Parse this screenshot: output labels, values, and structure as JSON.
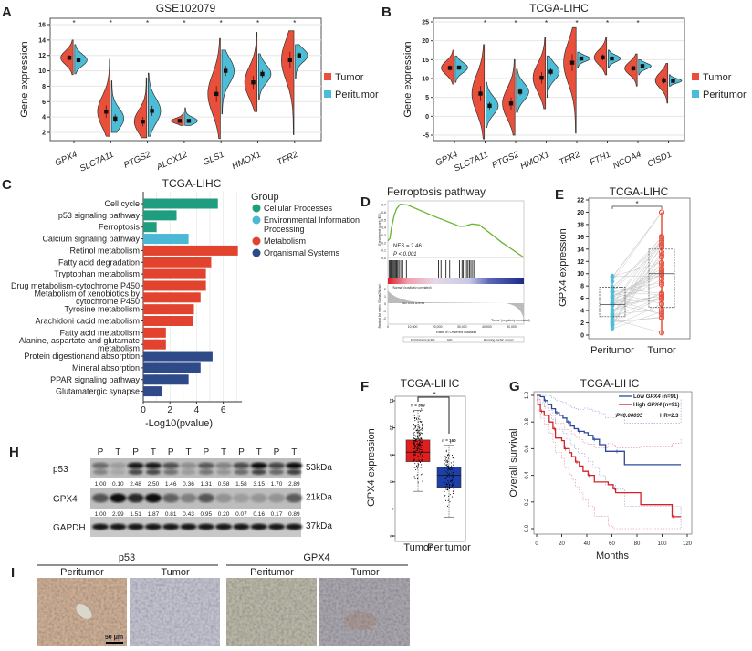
{
  "panel_letters": {
    "A": "A",
    "B": "B",
    "C": "C",
    "D": "D",
    "E": "E",
    "F": "F",
    "G": "G",
    "H": "H",
    "I": "I"
  },
  "colors": {
    "tumor": "#e8503c",
    "peritumor": "#4cbdd6",
    "cellular": "#1f9e7f",
    "environmental": "#4bb8d6",
    "metabolism": "#e2432f",
    "organismal": "#2f4a88",
    "highlight_label": "#d23a4a",
    "gsea_curve": "#6ab42d",
    "km_low": "#2d4a9a",
    "km_high": "#d2232a",
    "box_tumor": "#e11d1d",
    "box_peritumor": "#1d3fa8"
  },
  "chart_data": [
    {
      "type": "violin",
      "title": "GSE102079",
      "ylabel": "Gene expression",
      "ylim": [
        1,
        17
      ],
      "yticks": [
        "2",
        "4",
        "6",
        "8",
        "10",
        "12",
        "14",
        "16"
      ],
      "legend": [
        "Tumor",
        "Peritumor"
      ],
      "legend_placement": "right",
      "significance_mark": "*",
      "genes": [
        {
          "name": "GPX4",
          "sig": true,
          "tumor": {
            "mean": 11.7,
            "min": 9.5,
            "max": 14.0
          },
          "peritumor": {
            "mean": 11.4,
            "min": 9.6,
            "max": 13.4
          }
        },
        {
          "name": "SLC7A11",
          "sig": true,
          "tumor": {
            "mean": 4.7,
            "min": 1.5,
            "max": 11.5
          },
          "peritumor": {
            "mean": 3.8,
            "min": 2.0,
            "max": 8.7
          }
        },
        {
          "name": "PTGS2",
          "sig": true,
          "tumor": {
            "mean": 3.4,
            "min": 1.3,
            "max": 9.1
          },
          "peritumor": {
            "mean": 4.8,
            "min": 1.5,
            "max": 9.7
          }
        },
        {
          "name": "ALOX12",
          "sig": true,
          "tumor": {
            "mean": 3.5,
            "min": 2.9,
            "max": 4.6
          },
          "peritumor": {
            "mean": 3.5,
            "min": 2.9,
            "max": 5.2
          }
        },
        {
          "name": "GLS1",
          "sig": true,
          "tumor": {
            "mean": 7.0,
            "min": 1.2,
            "max": 14.2
          },
          "peritumor": {
            "mean": 10.0,
            "min": 4.4,
            "max": 12.7
          }
        },
        {
          "name": "HMOX1",
          "sig": true,
          "tumor": {
            "mean": 8.5,
            "min": 4.7,
            "max": 15.0
          },
          "peritumor": {
            "mean": 9.6,
            "min": 6.2,
            "max": 12.2
          }
        },
        {
          "name": "TFR2",
          "sig": true,
          "tumor": {
            "mean": 11.4,
            "min": 1.7,
            "max": 15.2
          },
          "peritumor": {
            "mean": 12.0,
            "min": 9.0,
            "max": 13.4
          }
        }
      ]
    },
    {
      "type": "violin",
      "title": "TCGA-LIHC",
      "ylabel": "Gene expression",
      "ylim": [
        -6,
        26
      ],
      "yticks": [
        "25",
        "20",
        "15",
        "10",
        "5",
        "0",
        "-5"
      ],
      "legend": [
        "Tumor",
        "Peritumor"
      ],
      "legend_placement": "right",
      "significance_mark": "*",
      "genes": [
        {
          "name": "GPX4",
          "sig": false,
          "tumor": {
            "mean": 12.8,
            "min": 8.5,
            "max": 17.5
          },
          "peritumor": {
            "mean": 12.9,
            "min": 9.0,
            "max": 16.0
          }
        },
        {
          "name": "SLC7A11",
          "sig": true,
          "tumor": {
            "mean": 6.0,
            "min": -6.0,
            "max": 19.0
          },
          "peritumor": {
            "mean": 2.8,
            "min": -3.0,
            "max": 9.0
          }
        },
        {
          "name": "PTGS2",
          "sig": true,
          "tumor": {
            "mean": 3.4,
            "min": -5.0,
            "max": 15.0
          },
          "peritumor": {
            "mean": 6.5,
            "min": 1.0,
            "max": 12.5
          }
        },
        {
          "name": "HMOX1",
          "sig": true,
          "tumor": {
            "mean": 10.2,
            "min": 2.0,
            "max": 21.0
          },
          "peritumor": {
            "mean": 11.8,
            "min": 5.0,
            "max": 16.0
          }
        },
        {
          "name": "TFR2",
          "sig": true,
          "tumor": {
            "mean": 14.2,
            "min": -4.5,
            "max": 23.5
          },
          "peritumor": {
            "mean": 15.3,
            "min": 13.0,
            "max": 17.0
          }
        },
        {
          "name": "FTH1",
          "sig": true,
          "tumor": {
            "mean": 15.6,
            "min": 11.0,
            "max": 21.0
          },
          "peritumor": {
            "mean": 15.3,
            "min": 13.0,
            "max": 17.5
          }
        },
        {
          "name": "NCOA4",
          "sig": true,
          "tumor": {
            "mean": 12.7,
            "min": 8.0,
            "max": 16.5
          },
          "peritumor": {
            "mean": 13.3,
            "min": 11.0,
            "max": 15.0
          }
        },
        {
          "name": "CISD1",
          "sig": false,
          "tumor": {
            "mean": 9.5,
            "min": 3.5,
            "max": 14.0
          },
          "peritumor": {
            "mean": 9.4,
            "min": 8.0,
            "max": 11.0
          }
        }
      ]
    },
    {
      "type": "bar",
      "orientation": "horizontal",
      "title": "TCGA-LIHC",
      "xlabel": "-Log10(pvalue)",
      "xlim": [
        0,
        7.2
      ],
      "xticks": [
        "0",
        "2",
        "4",
        "6"
      ],
      "grid": true,
      "legend_title": "Group",
      "legend_placement": "right",
      "groups": [
        {
          "key": "cellular",
          "label_lines": [
            "Cellular Processes"
          ]
        },
        {
          "key": "environmental",
          "label_lines": [
            "Environmental Information",
            "Processing"
          ]
        },
        {
          "key": "metabolism",
          "label_lines": [
            "Metabolism"
          ]
        },
        {
          "key": "organismal",
          "label_lines": [
            "Organismal Systems"
          ]
        }
      ],
      "bars": [
        {
          "label_lines": [
            "Cell cycle"
          ],
          "value": 5.6,
          "group": "cellular",
          "highlight": false
        },
        {
          "label_lines": [
            "p53 signaling pathway"
          ],
          "value": 2.5,
          "group": "cellular",
          "highlight": true
        },
        {
          "label_lines": [
            "Ferroptosis"
          ],
          "value": 1.0,
          "group": "cellular",
          "highlight": false
        },
        {
          "label_lines": [
            "Calcium signaling pathway"
          ],
          "value": 3.4,
          "group": "environmental",
          "highlight": false
        },
        {
          "label_lines": [
            "Retinol metabolism"
          ],
          "value": 7.1,
          "group": "metabolism",
          "highlight": false
        },
        {
          "label_lines": [
            "Fatty acid degradation"
          ],
          "value": 5.1,
          "group": "metabolism",
          "highlight": true
        },
        {
          "label_lines": [
            "Tryptophan metabolism"
          ],
          "value": 4.7,
          "group": "metabolism",
          "highlight": false
        },
        {
          "label_lines": [
            "Drug metabolism-cytochrome P450"
          ],
          "value": 4.7,
          "group": "metabolism",
          "highlight": false
        },
        {
          "label_lines": [
            "Metabolism of xenobiotics by",
            "cytochrome P450"
          ],
          "value": 4.3,
          "group": "metabolism",
          "highlight": false
        },
        {
          "label_lines": [
            "Tyrosine metabolism"
          ],
          "value": 3.8,
          "group": "metabolism",
          "highlight": false
        },
        {
          "label_lines": [
            "Arachidoni cacid metabolism"
          ],
          "value": 3.7,
          "group": "metabolism",
          "highlight": true
        },
        {
          "label_lines": [
            "Fatty acid metabolism"
          ],
          "value": 1.7,
          "group": "metabolism",
          "highlight": true
        },
        {
          "label_lines": [
            "Alanine, aspartate and glutamate",
            "metabolism"
          ],
          "value": 1.7,
          "group": "metabolism",
          "highlight": true
        },
        {
          "label_lines": [
            "Protein digestionand absorption"
          ],
          "value": 5.2,
          "group": "organismal",
          "highlight": false
        },
        {
          "label_lines": [
            "Mineral absorption"
          ],
          "value": 4.3,
          "group": "organismal",
          "highlight": true
        },
        {
          "label_lines": [
            "PPAR signaling pathway"
          ],
          "value": 3.4,
          "group": "organismal",
          "highlight": false
        },
        {
          "label_lines": [
            "Glutamatergic synapse"
          ],
          "value": 1.4,
          "group": "organismal",
          "highlight": false
        }
      ]
    },
    {
      "type": "line",
      "subtype": "gsea",
      "title": "Ferroptosis pathway",
      "ylabel": "Enrichment score (ES)",
      "ylabel2": "Ranked list metric (Signal2Noise)",
      "xlabel": "Rank in Ordered Dataset",
      "xlim": [
        0,
        55000
      ],
      "ylim": [
        0,
        0.72
      ],
      "yticks": [
        "0.7",
        "0.6",
        "0.5",
        "0.4",
        "0.3",
        "0.2",
        "0.1",
        "0.0"
      ],
      "metric_ticks": [
        "2",
        "1",
        "0",
        "-1",
        "-2"
      ],
      "xticks": [
        "0",
        "10,000",
        "20,000",
        "30,000",
        "40,000",
        "50,000"
      ],
      "nes_text": "NES = 2.46",
      "p_text": "P < 0.001",
      "pos_label": "'Normal' (positively correlated)",
      "neg_label": "'Tumor' (negatively correlated)",
      "zero_label": "Zero cross at 8745",
      "legend": [
        "Enrichment profile",
        "Hits",
        "Running metric scores"
      ],
      "es_curve": [
        [
          0,
          0.22
        ],
        [
          800,
          0.25
        ],
        [
          1500,
          0.4
        ],
        [
          2500,
          0.55
        ],
        [
          3500,
          0.64
        ],
        [
          5000,
          0.7
        ],
        [
          8000,
          0.69
        ],
        [
          18000,
          0.55
        ],
        [
          29000,
          0.41
        ],
        [
          31000,
          0.41
        ],
        [
          34000,
          0.44
        ],
        [
          37000,
          0.43
        ],
        [
          46000,
          0.2
        ],
        [
          55000,
          0.0
        ]
      ],
      "hits": [
        500,
        900,
        1300,
        1700,
        2100,
        2500,
        2900,
        3300,
        3600,
        4000,
        4500,
        5200,
        6000,
        7500,
        20500,
        21500,
        23500,
        25000,
        29000,
        30000,
        30500,
        31200,
        31800,
        32400,
        33000,
        33600,
        34300,
        35000
      ]
    },
    {
      "type": "box",
      "paired": true,
      "title": "TCGA-LIHC",
      "ylabel": "GPX4 expression",
      "ylim": [
        0,
        22
      ],
      "yticks": [
        "22",
        "20",
        "18",
        "16",
        "14",
        "12",
        "10",
        "8",
        "6",
        "4",
        "2",
        "0"
      ],
      "categories": [
        "Peritumor",
        "Tumor"
      ],
      "significance_mark": "*",
      "boxes": [
        {
          "name": "Peritumor",
          "min": 1,
          "q1": 3,
          "median": 5,
          "q3": 7.8,
          "max": 10
        },
        {
          "name": "Tumor",
          "min": 0,
          "q1": 4.5,
          "median": 10,
          "q3": 14,
          "max": 20
        }
      ]
    },
    {
      "type": "box",
      "title": "TCGA-LIHC",
      "ylabel": "GPX4 expression",
      "ylim": [
        6,
        11
      ],
      "yticks": [
        "11",
        "10",
        "9",
        "8",
        "7",
        "6"
      ],
      "categories": [
        "Tumor",
        "Peritumor"
      ],
      "significance_mark": "*",
      "boxes": [
        {
          "name": "Tumor",
          "n_label": "n = 369",
          "min": 7.65,
          "q1": 8.75,
          "median": 9.1,
          "q3": 9.55,
          "max": 10.65
        },
        {
          "name": "Peritumor",
          "n_label": "n = 160",
          "min": 6.7,
          "q1": 7.8,
          "median": 8.25,
          "q3": 8.55,
          "max": 9.35
        }
      ]
    },
    {
      "type": "line",
      "subtype": "kaplan-meier",
      "title": "TCGA-LIHC",
      "xlabel": "Months",
      "ylabel": "Overall survival",
      "xlim": [
        0,
        120
      ],
      "ylim": [
        0,
        1
      ],
      "xticks": [
        "0",
        "20",
        "40",
        "60",
        "80",
        "100",
        "120"
      ],
      "yticks": [
        "1.0",
        "0.8",
        "0.6",
        "0.4",
        "0.2",
        "0.0"
      ],
      "legend_placement": "top-right",
      "p_text": "P=0.00095",
      "hr_text": "HR=2.3",
      "series": [
        {
          "name": "Low GPX4 (n=91)",
          "name_prefix": "Low ",
          "name_gene": "GPX4",
          "name_suffix": " (n=91)",
          "color_key": "km_low",
          "points": [
            [
              0,
              1
            ],
            [
              3,
              0.99
            ],
            [
              6,
              0.96
            ],
            [
              9,
              0.93
            ],
            [
              12,
              0.9
            ],
            [
              15,
              0.87
            ],
            [
              18,
              0.85
            ],
            [
              21,
              0.83
            ],
            [
              24,
              0.8
            ],
            [
              27,
              0.77
            ],
            [
              30,
              0.75
            ],
            [
              33,
              0.73
            ],
            [
              38,
              0.72
            ],
            [
              41,
              0.7
            ],
            [
              45,
              0.67
            ],
            [
              50,
              0.63
            ],
            [
              55,
              0.58
            ],
            [
              63,
              0.58
            ],
            [
              70,
              0.48
            ],
            [
              115,
              0.48
            ]
          ]
        },
        {
          "name": "High GPX4 (n=91)",
          "name_prefix": "High ",
          "name_gene": "GPX4",
          "name_suffix": " (n=91)",
          "color_key": "km_high",
          "points": [
            [
              0,
              1
            ],
            [
              1,
              0.93
            ],
            [
              3,
              0.88
            ],
            [
              6,
              0.85
            ],
            [
              10,
              0.8
            ],
            [
              13,
              0.75
            ],
            [
              15,
              0.68
            ],
            [
              20,
              0.66
            ],
            [
              22,
              0.6
            ],
            [
              26,
              0.57
            ],
            [
              28,
              0.54
            ],
            [
              31,
              0.5
            ],
            [
              34,
              0.47
            ],
            [
              37,
              0.43
            ],
            [
              41,
              0.4
            ],
            [
              46,
              0.35
            ],
            [
              57,
              0.33
            ],
            [
              61,
              0.3
            ],
            [
              63,
              0.27
            ],
            [
              83,
              0.18
            ],
            [
              108,
              0.09
            ],
            [
              115,
              0.09
            ]
          ]
        }
      ]
    }
  ],
  "western_blot": {
    "lanes": [
      "P",
      "T",
      "P",
      "T",
      "P",
      "T",
      "P",
      "T",
      "P",
      "T",
      "P",
      "T"
    ],
    "rows": [
      {
        "label": "p53",
        "kda": "53kDa",
        "quant": [
          "1.00",
          "0.10",
          "2.48",
          "2.50",
          "1.46",
          "0.36",
          "1.31",
          "0.58",
          "1.58",
          "3.15",
          "1.70",
          "2.89"
        ]
      },
      {
        "label": "GPX4",
        "kda": "21kDa",
        "quant": [
          "1.00",
          "2.99",
          "1.51",
          "1.87",
          "0.81",
          "0.43",
          "0.95",
          "0.20",
          "0.07",
          "0.16",
          "0.17",
          "0.89"
        ]
      },
      {
        "label": "GAPDH",
        "kda": "37kDa",
        "quant": []
      }
    ]
  },
  "ihc": {
    "groups": [
      {
        "marker": "p53",
        "images": [
          {
            "label": "Peritumor",
            "tone": "#cdae93"
          },
          {
            "label": "Tumor",
            "tone": "#c3c2cc"
          }
        ]
      },
      {
        "marker": "GPX4",
        "images": [
          {
            "label": "Peritumor",
            "tone": "#b9b6a4"
          },
          {
            "label": "Tumor",
            "tone": "#aaa6ab"
          }
        ]
      }
    ],
    "scale_bar": "50 μm"
  }
}
